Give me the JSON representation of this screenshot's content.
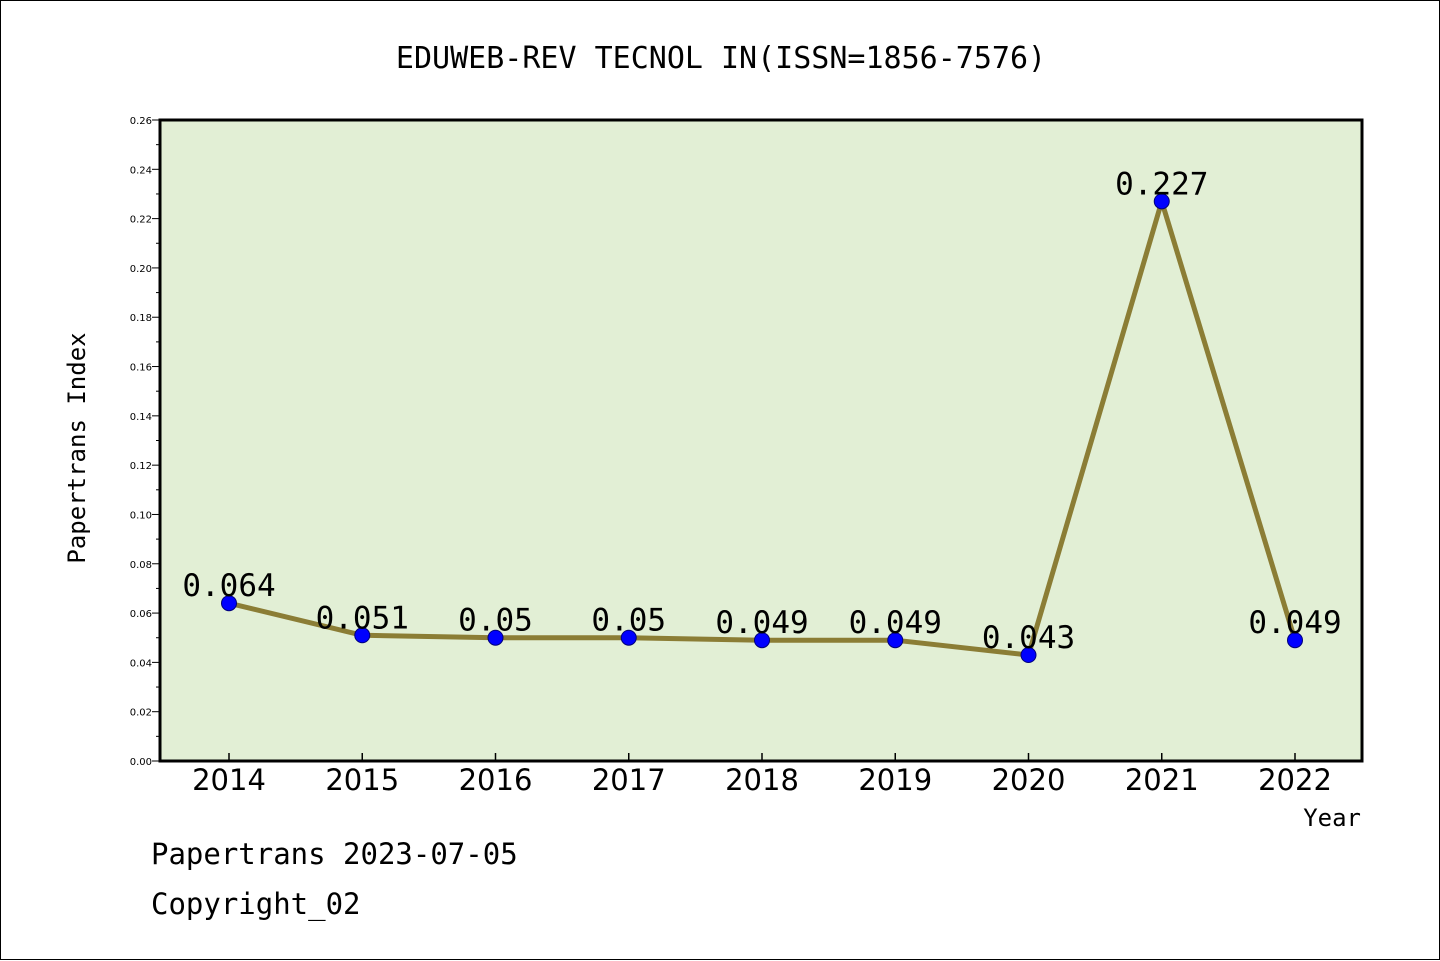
{
  "chart_data": {
    "type": "line",
    "title": "EDUWEB-REV TECNOL IN(ISSN=1856-7576)",
    "xlabel": "Year",
    "ylabel": "Papertrans Index",
    "categories": [
      "2014",
      "2015",
      "2016",
      "2017",
      "2018",
      "2019",
      "2020",
      "2021",
      "2022"
    ],
    "values": [
      0.064,
      0.051,
      0.05,
      0.05,
      0.049,
      0.049,
      0.043,
      0.227,
      0.049
    ],
    "data_labels": [
      "0.064",
      "0.051",
      "0.05",
      "0.05",
      "0.049",
      "0.049",
      "0.043",
      "0.227",
      "0.049"
    ],
    "ylim": [
      0,
      0.26
    ],
    "yticks": [
      "0.00",
      "0.02",
      "0.04",
      "0.06",
      "0.08",
      "0.10",
      "0.12",
      "0.14",
      "0.16",
      "0.18",
      "0.20",
      "0.22",
      "0.24",
      "0.26"
    ],
    "grid": false,
    "legend": "none",
    "colors": {
      "plot_background": "#e2efd5",
      "line": "#8b7d35",
      "marker": "#0000ff"
    }
  },
  "footer": {
    "date_line": "Papertrans 2023-07-05",
    "copyright": "Copyright_02"
  }
}
